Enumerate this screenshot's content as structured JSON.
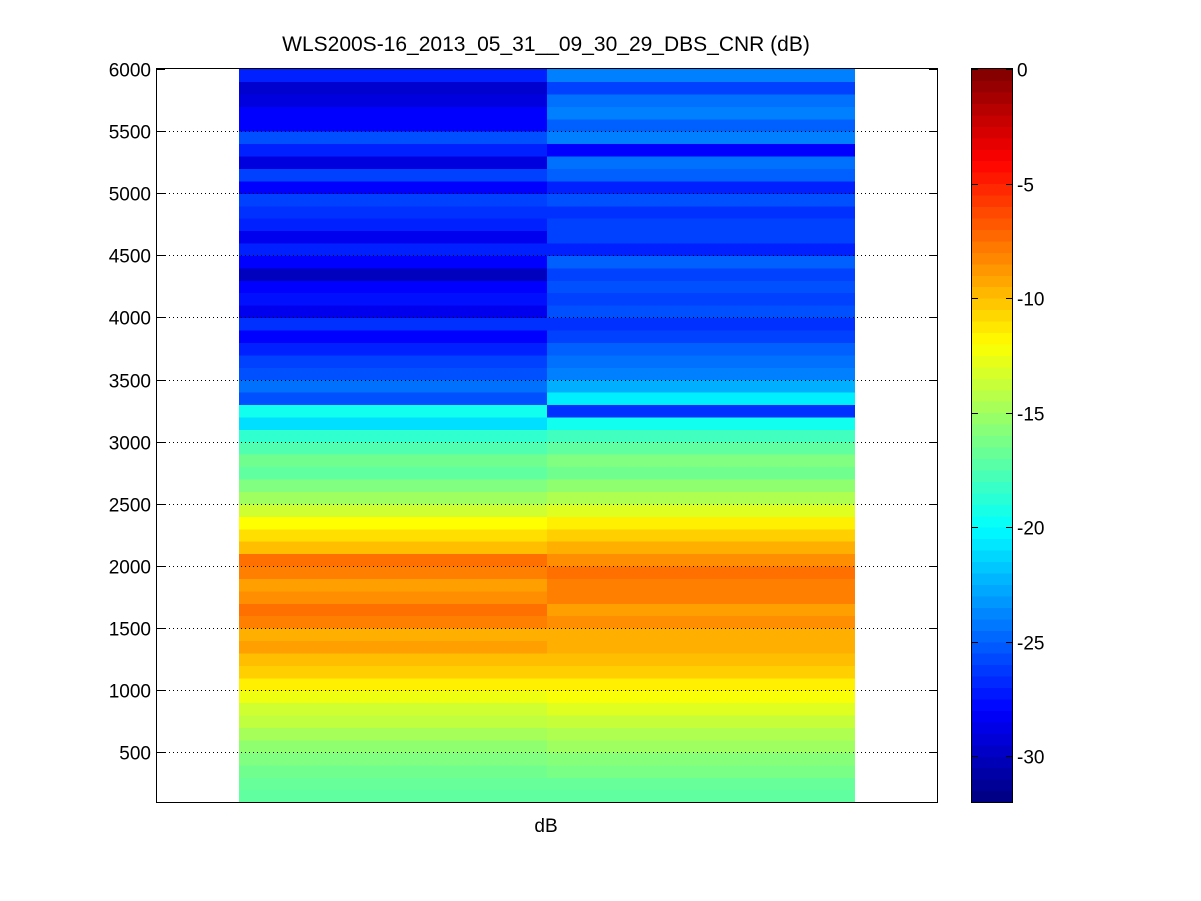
{
  "chart_data": {
    "type": "heatmap",
    "title": "WLS200S-16_2013_05_31__09_30_29_DBS_CNR (dB)",
    "xlabel": "dB",
    "ylabel": "",
    "ylim": [
      100,
      6000
    ],
    "yticks": [
      500,
      1000,
      1500,
      2000,
      2500,
      3000,
      3500,
      4000,
      4500,
      5000,
      5500,
      6000
    ],
    "grid": "horizontal dotted lines at y ticks",
    "colorbar": {
      "colormap": "jet",
      "range": [
        -32,
        0
      ],
      "ticks": [
        -30,
        -25,
        -20,
        -15,
        -10,
        -5,
        0
      ],
      "placement": "right"
    },
    "rows": {
      "y_start": 100,
      "y_step": 100,
      "count": 59,
      "columns": [
        {
          "values": [
            -17,
            -16.8,
            -16.5,
            -16,
            -15.5,
            -14.8,
            -14,
            -13.5,
            -12.5,
            -11.5,
            -10.5,
            -10,
            -9,
            -9.5,
            -8,
            -7.5,
            -8.5,
            -9,
            -8,
            -7.5,
            -10,
            -11,
            -12,
            -13.5,
            -15,
            -16,
            -17,
            -16.5,
            -17.5,
            -18.5,
            -21,
            -19.5,
            -25.5,
            -24.5,
            -25.5,
            -26,
            -27,
            -28,
            -26.5,
            -28.5,
            -27.5,
            -28,
            -30,
            -28,
            -27,
            -28.5,
            -27,
            -26.5,
            -26,
            -28,
            -26,
            -29,
            -27,
            -25.5,
            -28,
            -28,
            -29,
            -29.5,
            -27
          ]
        },
        {
          "values": [
            -17,
            -16.8,
            -16.2,
            -15.8,
            -15,
            -14.5,
            -13.8,
            -13,
            -12.2,
            -11.5,
            -10.5,
            -10,
            -9.5,
            -9.5,
            -8.5,
            -9,
            -8,
            -8,
            -7.5,
            -8.5,
            -9.5,
            -10.5,
            -11.5,
            -13,
            -14.5,
            -15.5,
            -16.5,
            -16,
            -17,
            -18,
            -19.5,
            -26.5,
            -20.5,
            -22.5,
            -24,
            -24.5,
            -25,
            -26,
            -26.5,
            -25.5,
            -26,
            -25.5,
            -26,
            -25,
            -27,
            -26,
            -26,
            -26.5,
            -25.5,
            -27,
            -25,
            -24.5,
            -28,
            -24,
            -25,
            -24,
            -24.5,
            -26,
            -24
          ]
        }
      ]
    }
  }
}
